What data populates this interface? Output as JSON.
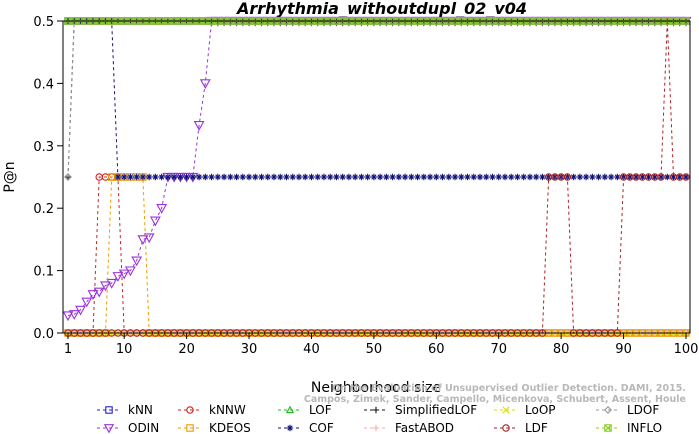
{
  "chart_data": {
    "type": "line",
    "title": "Arrhythmia_withoutdupl_02_v04",
    "xlabel": "Neighborhood size",
    "ylabel": "P@n",
    "xlim": [
      1,
      100
    ],
    "ylim": [
      0,
      0.5
    ],
    "x_ticks": [
      1,
      10,
      20,
      30,
      40,
      50,
      60,
      70,
      80,
      90,
      100
    ],
    "x_tick_labels": [
      "1",
      "10",
      "20",
      "30",
      "40",
      "50",
      "60",
      "70",
      "80",
      "90",
      "100"
    ],
    "y_ticks": [
      0.0,
      0.1,
      0.2,
      0.3,
      0.4,
      0.5
    ],
    "y_tick_labels": [
      "0.0",
      "0.1",
      "0.2",
      "0.3",
      "0.4",
      "0.5"
    ],
    "grid": false,
    "legend_position": "bottom",
    "watermark": [
      "Campos, Zimek, Sander, Campello, Micenkova, Schubert, Assent, Houle",
      "On the Evaluation of Unsupervised Outlier Detection. DAMI, 2015."
    ],
    "series": [
      {
        "name": "kNN",
        "color": "#2222cc",
        "marker": "square",
        "points": [
          [
            1,
            0.5
          ],
          [
            100,
            0.5
          ]
        ]
      },
      {
        "name": "kNNW",
        "color": "#cc2222",
        "marker": "circle",
        "points": [
          [
            1,
            0
          ],
          [
            5,
            0
          ],
          [
            6,
            0.25
          ],
          [
            8,
            0.25
          ],
          [
            9,
            0.25
          ],
          [
            10,
            0
          ],
          [
            13,
            0
          ],
          [
            14,
            0
          ],
          [
            100,
            0
          ]
        ]
      },
      {
        "name": "LOF",
        "color": "#22bb22",
        "marker": "triangle-up",
        "points": [
          [
            1,
            0.5
          ],
          [
            100,
            0.5
          ]
        ]
      },
      {
        "name": "SimplifiedLOF",
        "color": "#111111",
        "marker": "plus",
        "points": [
          [
            1,
            0.25
          ],
          [
            2,
            0.5
          ],
          [
            100,
            0.5
          ]
        ]
      },
      {
        "name": "LoOP",
        "color": "#dddd00",
        "marker": "x",
        "points": [
          [
            1,
            0
          ],
          [
            100,
            0
          ]
        ]
      },
      {
        "name": "LDOF",
        "color": "#999999",
        "marker": "diamond",
        "points": [
          [
            1,
            0.25
          ],
          [
            2,
            0.5
          ],
          [
            100,
            0.5
          ]
        ]
      },
      {
        "name": "ODIN",
        "color": "#9933dd",
        "marker": "triangle-down",
        "points": [
          [
            1,
            0.028
          ],
          [
            2,
            0.03
          ],
          [
            3,
            0.037
          ],
          [
            4,
            0.05
          ],
          [
            5,
            0.062
          ],
          [
            6,
            0.066
          ],
          [
            7,
            0.076
          ],
          [
            8,
            0.08
          ],
          [
            9,
            0.091
          ],
          [
            10,
            0.095
          ],
          [
            11,
            0.1
          ],
          [
            12,
            0.116
          ],
          [
            13,
            0.15
          ],
          [
            14,
            0.153
          ],
          [
            15,
            0.18
          ],
          [
            16,
            0.2
          ],
          [
            17,
            0.25
          ],
          [
            21,
            0.25
          ],
          [
            22,
            0.333
          ],
          [
            23,
            0.4
          ],
          [
            24,
            0.5
          ],
          [
            100,
            0.5
          ]
        ]
      },
      {
        "name": "KDEOS",
        "color": "#ee9900",
        "marker": "square",
        "points": [
          [
            1,
            0
          ],
          [
            7,
            0
          ],
          [
            8,
            0.25
          ],
          [
            13,
            0.25
          ],
          [
            14,
            0
          ],
          [
            100,
            0
          ]
        ]
      },
      {
        "name": "COF",
        "color": "#111177",
        "marker": "asterisk",
        "points": [
          [
            1,
            0.5
          ],
          [
            8,
            0.5
          ],
          [
            9,
            0.25
          ],
          [
            100,
            0.25
          ]
        ]
      },
      {
        "name": "FastABOD",
        "color": "#ffaaaa",
        "marker": "plus",
        "points": [
          [
            1,
            0
          ],
          [
            100,
            0
          ]
        ]
      },
      {
        "name": "LDF",
        "color": "#aa2222",
        "marker": "circle",
        "points": [
          [
            1,
            0
          ],
          [
            77,
            0
          ],
          [
            78,
            0.25
          ],
          [
            81,
            0.25
          ],
          [
            82,
            0
          ],
          [
            89,
            0
          ],
          [
            90,
            0.25
          ],
          [
            96,
            0.25
          ],
          [
            97,
            0.5
          ],
          [
            98,
            0.25
          ],
          [
            100,
            0.25
          ]
        ]
      },
      {
        "name": "INFLO",
        "color": "#88cc22",
        "marker": "square-x",
        "points": [
          [
            1,
            0.5
          ],
          [
            100,
            0.5
          ]
        ]
      }
    ]
  }
}
